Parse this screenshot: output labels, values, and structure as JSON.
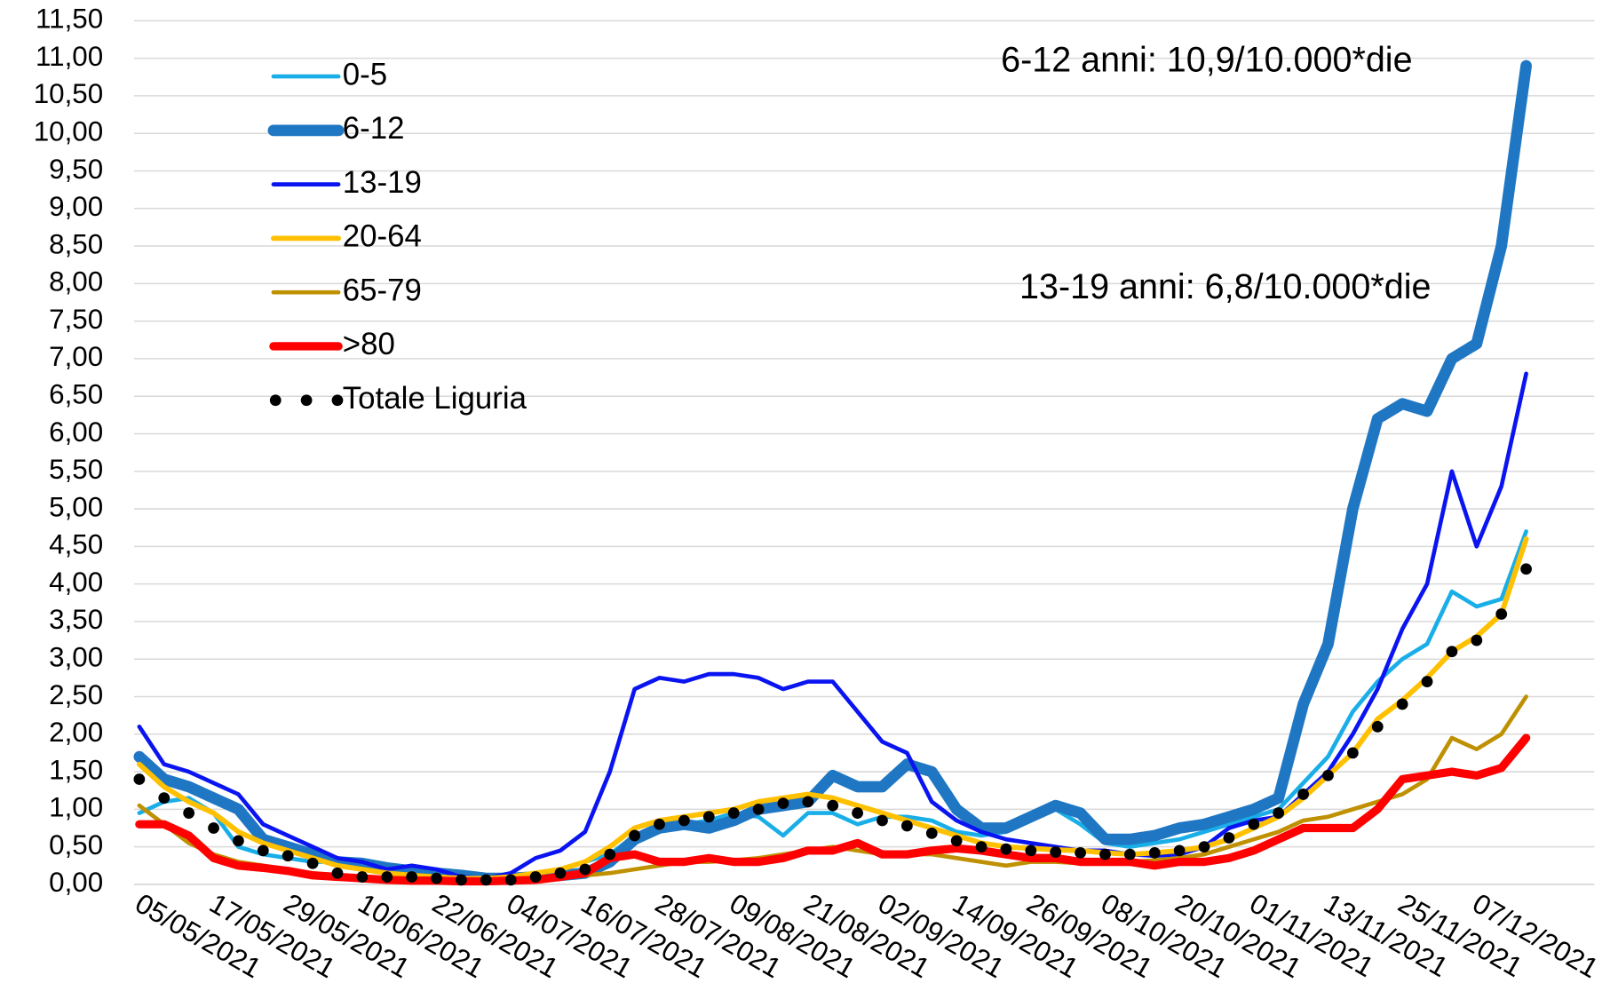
{
  "chart_data": {
    "type": "line",
    "categories": [
      "05/05/2021",
      null,
      null,
      "17/05/2021",
      null,
      null,
      "29/05/2021",
      null,
      null,
      "10/06/2021",
      null,
      null,
      "22/06/2021",
      null,
      null,
      "04/07/2021",
      null,
      null,
      "16/07/2021",
      null,
      null,
      "28/07/2021",
      null,
      null,
      "09/08/2021",
      null,
      null,
      "21/08/2021",
      null,
      null,
      "02/09/2021",
      null,
      null,
      "14/09/2021",
      null,
      null,
      "26/09/2021",
      null,
      null,
      "08/10/2021",
      null,
      null,
      "20/10/2021",
      null,
      null,
      "01/11/2021",
      null,
      null,
      "13/11/2021",
      null,
      null,
      "25/11/2021",
      null,
      null,
      "07/12/2021",
      null,
      null
    ],
    "ylim": [
      0,
      11.5
    ],
    "yticks": [
      {
        "value": 0,
        "label": "0,00"
      },
      {
        "value": 0.5,
        "label": "0,50"
      },
      {
        "value": 1,
        "label": "1,00"
      },
      {
        "value": 1.5,
        "label": "1,50"
      },
      {
        "value": 2,
        "label": "2,00"
      },
      {
        "value": 2.5,
        "label": "2,50"
      },
      {
        "value": 3,
        "label": "3,00"
      },
      {
        "value": 3.5,
        "label": "3,50"
      },
      {
        "value": 4,
        "label": "4,00"
      },
      {
        "value": 4.5,
        "label": "4,50"
      },
      {
        "value": 5,
        "label": "5,00"
      },
      {
        "value": 5.5,
        "label": "5,50"
      },
      {
        "value": 6,
        "label": "6,00"
      },
      {
        "value": 6.5,
        "label": "6,50"
      },
      {
        "value": 7,
        "label": "7,00"
      },
      {
        "value": 7.5,
        "label": "7,50"
      },
      {
        "value": 8,
        "label": "8,00"
      },
      {
        "value": 8.5,
        "label": "8,50"
      },
      {
        "value": 9,
        "label": "9,00"
      },
      {
        "value": 9.5,
        "label": "9,50"
      },
      {
        "value": 10,
        "label": "10,00"
      },
      {
        "value": 10.5,
        "label": "10,50"
      },
      {
        "value": 11,
        "label": "11,00"
      },
      {
        "value": 11.5,
        "label": "11,50"
      }
    ],
    "grid": true,
    "legend": "upper-left",
    "annotations": [
      "6-12 anni: 10,9/10.000*die",
      "13-19 anni: 6,8/10.000*die"
    ],
    "series": [
      {
        "name": "0-5",
        "color": "#19aee8",
        "width": 4,
        "values": [
          0.95,
          1.1,
          1.15,
          0.95,
          0.5,
          0.4,
          0.35,
          0.3,
          0.3,
          0.3,
          0.25,
          0.2,
          0.15,
          0.1,
          0.08,
          0.1,
          0.15,
          0.2,
          0.3,
          0.4,
          0.65,
          0.75,
          0.8,
          0.85,
          0.95,
          0.9,
          0.65,
          0.95,
          0.95,
          0.8,
          0.9,
          0.9,
          0.85,
          0.7,
          0.65,
          0.7,
          0.95,
          1.0,
          0.8,
          0.55,
          0.5,
          0.55,
          0.6,
          0.7,
          0.8,
          0.9,
          1.0,
          1.35,
          1.7,
          2.3,
          2.7,
          3.0,
          3.2,
          3.9,
          3.7,
          3.8,
          4.7
        ]
      },
      {
        "name": "6-12",
        "color": "#1f77c4",
        "width": 11,
        "values": [
          1.7,
          1.4,
          1.3,
          1.15,
          1.0,
          0.6,
          0.5,
          0.4,
          0.3,
          0.28,
          0.22,
          0.18,
          0.15,
          0.12,
          0.08,
          0.08,
          0.1,
          0.12,
          0.15,
          0.3,
          0.6,
          0.75,
          0.8,
          0.75,
          0.85,
          1.0,
          1.05,
          1.1,
          1.45,
          1.3,
          1.3,
          1.6,
          1.5,
          1.0,
          0.75,
          0.75,
          0.9,
          1.05,
          0.95,
          0.6,
          0.6,
          0.65,
          0.75,
          0.8,
          0.9,
          1.0,
          1.15,
          2.4,
          3.2,
          5.0,
          6.2,
          6.4,
          6.3,
          7.0,
          7.2,
          8.5,
          10.9
        ]
      },
      {
        "name": "13-19",
        "color": "#0a14f0",
        "width": 4,
        "values": [
          2.1,
          1.6,
          1.5,
          1.35,
          1.2,
          0.8,
          0.65,
          0.5,
          0.35,
          0.3,
          0.2,
          0.25,
          0.2,
          0.1,
          0.08,
          0.15,
          0.35,
          0.45,
          0.7,
          1.5,
          2.6,
          2.75,
          2.7,
          2.8,
          2.8,
          2.75,
          2.6,
          2.7,
          2.7,
          2.3,
          1.9,
          1.75,
          1.1,
          0.85,
          0.7,
          0.6,
          0.55,
          0.5,
          0.45,
          0.45,
          0.4,
          0.38,
          0.4,
          0.5,
          0.75,
          0.85,
          0.9,
          1.2,
          1.5,
          2.0,
          2.6,
          3.4,
          4.0,
          5.5,
          4.5,
          5.3,
          6.8
        ]
      },
      {
        "name": "20-64",
        "color": "#ffc000",
        "width": 5,
        "values": [
          1.6,
          1.3,
          1.1,
          0.95,
          0.7,
          0.55,
          0.45,
          0.35,
          0.25,
          0.2,
          0.15,
          0.12,
          0.1,
          0.08,
          0.08,
          0.1,
          0.15,
          0.2,
          0.3,
          0.5,
          0.75,
          0.85,
          0.9,
          0.95,
          1.0,
          1.1,
          1.15,
          1.2,
          1.15,
          1.05,
          0.95,
          0.85,
          0.75,
          0.65,
          0.55,
          0.5,
          0.48,
          0.46,
          0.45,
          0.42,
          0.4,
          0.42,
          0.45,
          0.5,
          0.6,
          0.75,
          0.9,
          1.15,
          1.45,
          1.75,
          2.2,
          2.45,
          2.75,
          3.1,
          3.3,
          3.6,
          4.6
        ]
      },
      {
        "name": "65-79",
        "color": "#bf9000",
        "width": 4,
        "values": [
          1.05,
          0.8,
          0.55,
          0.4,
          0.3,
          0.25,
          0.2,
          0.15,
          0.12,
          0.1,
          0.08,
          0.06,
          0.05,
          0.05,
          0.05,
          0.06,
          0.08,
          0.1,
          0.12,
          0.15,
          0.2,
          0.25,
          0.3,
          0.3,
          0.32,
          0.35,
          0.4,
          0.45,
          0.5,
          0.45,
          0.4,
          0.4,
          0.4,
          0.35,
          0.3,
          0.25,
          0.3,
          0.3,
          0.28,
          0.28,
          0.3,
          0.32,
          0.35,
          0.4,
          0.5,
          0.6,
          0.7,
          0.85,
          0.9,
          1.0,
          1.1,
          1.2,
          1.4,
          1.95,
          1.8,
          2.0,
          2.5
        ]
      },
      {
        "name": ">80",
        "color": "#ff0000",
        "width": 8,
        "values": [
          0.8,
          0.8,
          0.65,
          0.35,
          0.25,
          0.22,
          0.18,
          0.12,
          0.1,
          0.08,
          0.06,
          0.05,
          0.05,
          0.04,
          0.04,
          0.05,
          0.06,
          0.1,
          0.15,
          0.35,
          0.4,
          0.3,
          0.3,
          0.35,
          0.3,
          0.3,
          0.35,
          0.45,
          0.45,
          0.55,
          0.4,
          0.4,
          0.45,
          0.48,
          0.45,
          0.4,
          0.35,
          0.35,
          0.3,
          0.3,
          0.3,
          0.25,
          0.3,
          0.3,
          0.35,
          0.45,
          0.6,
          0.75,
          0.75,
          0.75,
          1.0,
          1.4,
          1.45,
          1.5,
          1.45,
          1.55,
          1.95
        ]
      },
      {
        "name": "Totale Liguria",
        "color": "#000000",
        "style": "dotted",
        "width": 5.5,
        "values": [
          1.4,
          1.15,
          0.95,
          0.75,
          0.58,
          0.45,
          0.38,
          0.28,
          0.15,
          0.1,
          0.1,
          0.1,
          0.08,
          0.06,
          0.06,
          0.06,
          0.1,
          0.15,
          0.2,
          0.4,
          0.65,
          0.8,
          0.85,
          0.9,
          0.95,
          1.0,
          1.08,
          1.1,
          1.05,
          0.95,
          0.85,
          0.78,
          0.68,
          0.58,
          0.5,
          0.47,
          0.45,
          0.43,
          0.42,
          0.4,
          0.4,
          0.42,
          0.45,
          0.5,
          0.62,
          0.8,
          0.95,
          1.2,
          1.45,
          1.75,
          2.1,
          2.4,
          2.7,
          3.1,
          3.25,
          3.6,
          4.2
        ]
      }
    ]
  }
}
